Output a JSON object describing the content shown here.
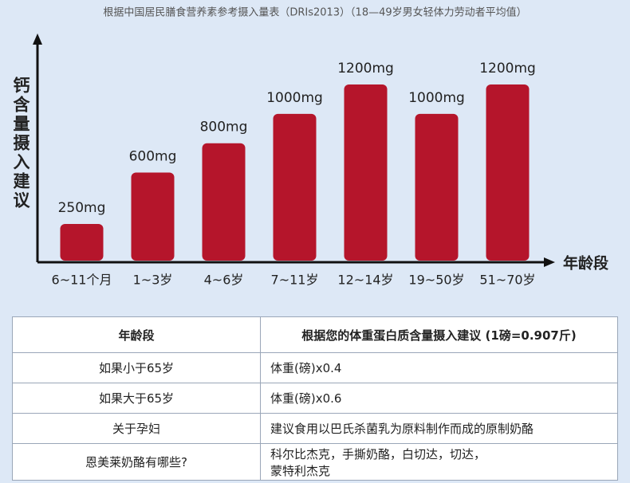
{
  "chart_data": {
    "type": "bar",
    "title": "根据中国居民膳食营养素参考摄入量表（DRIs2013）（18—49岁男女轻体力劳动者平均值）",
    "y_label": "钙含量摄入建议",
    "x_label": "年龄段",
    "categories": [
      "6~11个月",
      "1~3岁",
      "4~6岁",
      "7~11岁",
      "12~14岁",
      "19~50岁",
      "51~70岁"
    ],
    "values": [
      250,
      600,
      800,
      1000,
      1200,
      1000,
      1200
    ],
    "value_labels": [
      "250mg",
      "600mg",
      "800mg",
      "1000mg",
      "1200mg",
      "1000mg",
      "1200mg"
    ],
    "color": "#b5152b",
    "ylim": [
      0,
      1450
    ]
  },
  "table": {
    "header": [
      "年龄段",
      "根据您的体重蛋白质含量摄入建议 (1磅=0.907斤)"
    ],
    "rows": [
      [
        "如果小于65岁",
        "体重(磅)x0.4"
      ],
      [
        "如果大于65岁",
        "体重(磅)x0.6"
      ],
      [
        "关于孕妇",
        "建议食用以巴氏杀菌乳为原料制作而成的原制奶酪"
      ],
      [
        "恩美莱奶酪有哪些?",
        [
          "科尔比杰克，手撕奶酪，白切达，切达，",
          "蒙特利杰克"
        ]
      ]
    ]
  }
}
